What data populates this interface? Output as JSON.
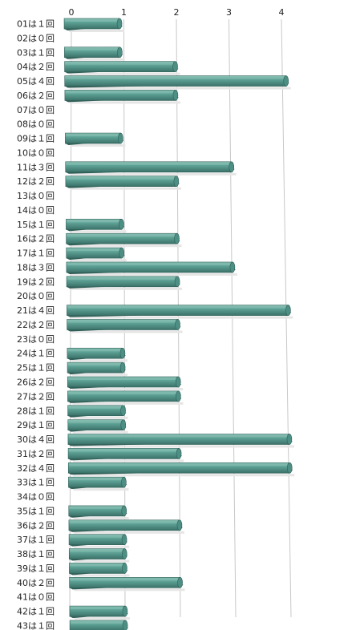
{
  "chart_data": {
    "type": "bar",
    "orientation": "horizontal",
    "title": "",
    "xlabel": "",
    "ylabel": "",
    "xlim": [
      0,
      4
    ],
    "x_ticks": [
      "0",
      "1",
      "2",
      "3",
      "4"
    ],
    "grid": "vertical",
    "colors": {
      "bar_top": "#7fb9ad",
      "bar_face": "#4d8f84",
      "bar_dark": "#2f5f57"
    },
    "categories": [
      "01は１回",
      "02は０回",
      "03は１回",
      "04は２回",
      "05は４回",
      "06は２回",
      "07は０回",
      "08は０回",
      "09は１回",
      "10は０回",
      "11は３回",
      "12は２回",
      "13は０回",
      "14は０回",
      "15は１回",
      "16は２回",
      "17は１回",
      "18は３回",
      "19は２回",
      "20は０回",
      "21は４回",
      "22は２回",
      "23は０回",
      "24は１回",
      "25は１回",
      "26は２回",
      "27は２回",
      "28は１回",
      "29は１回",
      "30は４回",
      "31は２回",
      "32は４回",
      "33は１回",
      "34は０回",
      "35は１回",
      "36は２回",
      "37は１回",
      "38は１回",
      "39は１回",
      "40は２回",
      "41は０回",
      "42は１回",
      "43は１回"
    ],
    "values": [
      1,
      0,
      1,
      2,
      4,
      2,
      0,
      0,
      1,
      0,
      3,
      2,
      0,
      0,
      1,
      2,
      1,
      3,
      2,
      0,
      4,
      2,
      0,
      1,
      1,
      2,
      2,
      1,
      1,
      4,
      2,
      4,
      1,
      0,
      1,
      2,
      1,
      1,
      1,
      2,
      0,
      1,
      1
    ]
  }
}
